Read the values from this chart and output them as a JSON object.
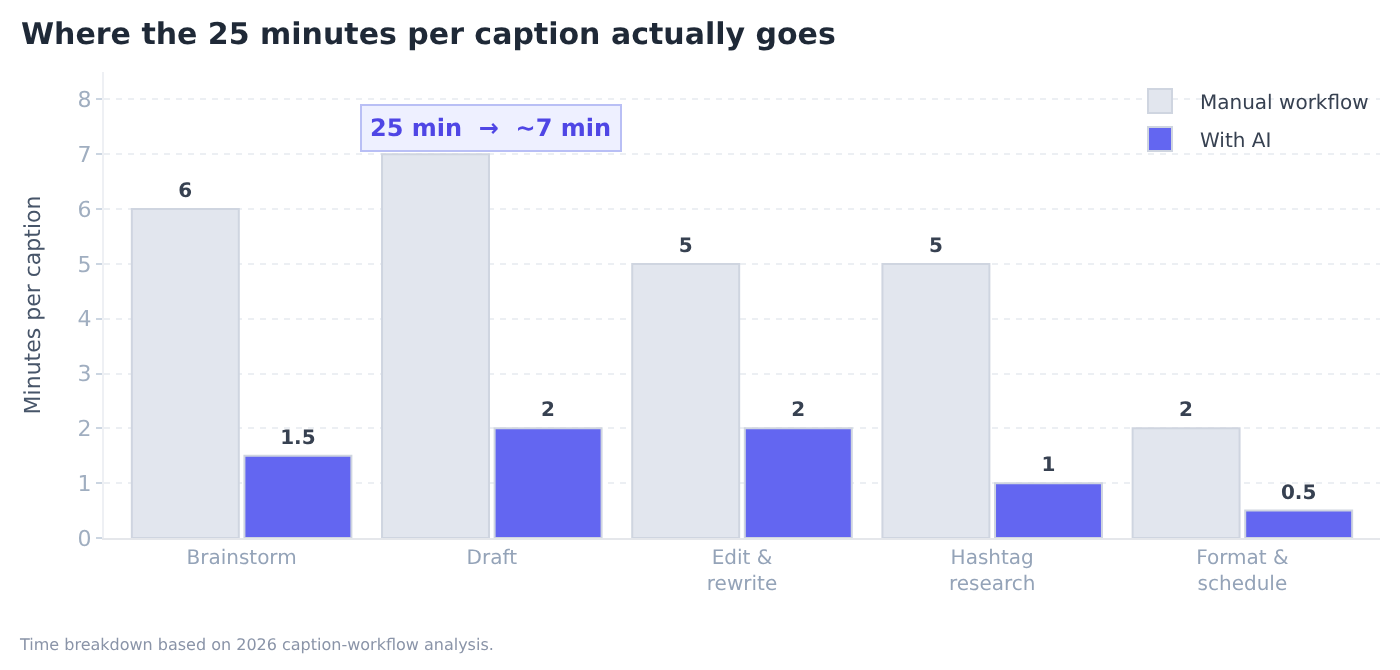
{
  "chart_data": {
    "type": "bar",
    "title": "Where the 25 minutes per caption actually goes",
    "ylabel": "Minutes per caption",
    "categories": [
      "Brainstorm",
      "Draft",
      "Edit &\nrewrite",
      "Hashtag\nresearch",
      "Format &\nschedule"
    ],
    "series": [
      {
        "name": "Manual workflow",
        "color": "#e2e6ee",
        "values": [
          6,
          7,
          5,
          5,
          2
        ],
        "value_labels": [
          "6",
          null,
          "5",
          "5",
          "2"
        ]
      },
      {
        "name": "With AI",
        "color": "#6366f1",
        "values": [
          1.5,
          2,
          2,
          1,
          0.5
        ],
        "value_labels": [
          "1.5",
          "2",
          "2",
          "1",
          "0.5"
        ]
      }
    ],
    "ylim": [
      0,
      8.5
    ],
    "yticks": [
      0,
      1,
      2,
      3,
      4,
      5,
      6,
      7,
      8
    ],
    "grid": "y",
    "legend": "top right",
    "annotations": [
      {
        "text": "25 min  →  ~7 min",
        "x": "Draft",
        "y": 7
      },
      "Time breakdown based on 2026 caption-workflow analysis."
    ]
  }
}
